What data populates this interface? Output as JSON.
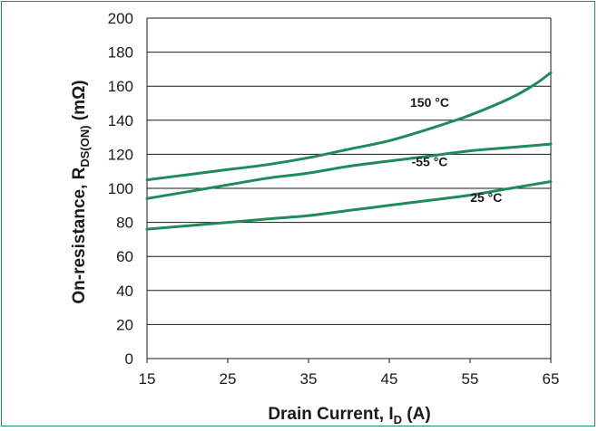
{
  "chart_data": {
    "type": "line",
    "title": "",
    "xlabel": {
      "main": "Drain Current, I",
      "sub": "D",
      "tail": " (A)"
    },
    "ylabel": {
      "main": "On-resistance, R",
      "sub": "DS(ON)",
      "tail": " (mΩ)"
    },
    "xlim": [
      15,
      65
    ],
    "ylim": [
      0,
      200
    ],
    "xticks": [
      15,
      25,
      35,
      45,
      55,
      65
    ],
    "yticks": [
      0,
      20,
      40,
      60,
      80,
      100,
      120,
      140,
      160,
      180,
      200
    ],
    "grid": "horizontal",
    "line_color": "#1f8a5a",
    "series": [
      {
        "name": "150 °C",
        "x": [
          15,
          20,
          25,
          30,
          35,
          40,
          45,
          50,
          55,
          60,
          63,
          65
        ],
        "y": [
          105,
          108,
          111,
          114,
          118,
          123,
          128,
          135,
          143,
          153,
          161,
          168
        ]
      },
      {
        "name": "-55 °C",
        "x": [
          15,
          20,
          25,
          30,
          35,
          40,
          45,
          50,
          55,
          60,
          65
        ],
        "y": [
          94,
          98,
          102,
          106,
          109,
          113,
          116,
          119,
          122,
          124,
          126
        ]
      },
      {
        "name": "25 °C",
        "x": [
          15,
          20,
          25,
          30,
          35,
          40,
          45,
          50,
          55,
          60,
          65
        ],
        "y": [
          76,
          78,
          80,
          82,
          84,
          87,
          90,
          93,
          96,
          100,
          104
        ]
      }
    ],
    "annotations": [
      {
        "text": "150 °C",
        "x": 50,
        "y": 148
      },
      {
        "text": "-55 °C",
        "x": 50,
        "y": 113
      },
      {
        "text": "25 °C",
        "x": 57,
        "y": 92
      }
    ]
  }
}
